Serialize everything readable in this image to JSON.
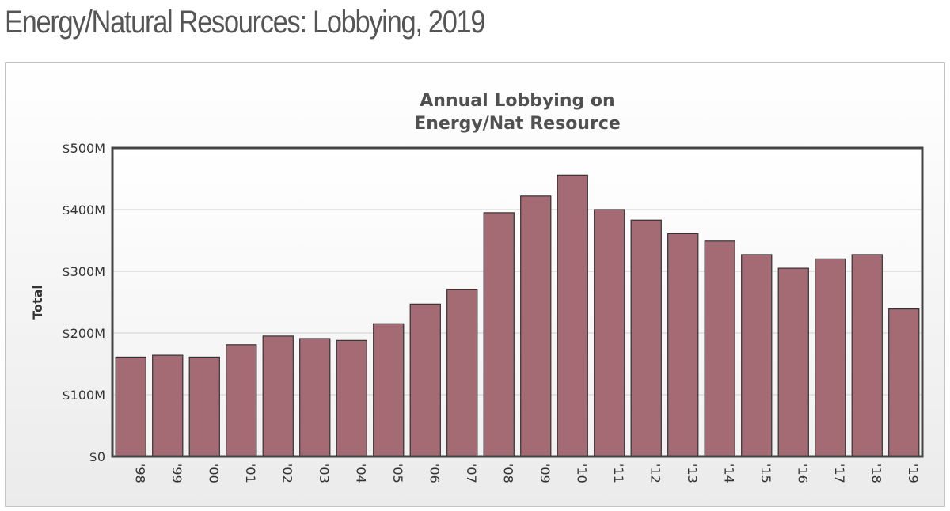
{
  "page": {
    "title": "Energy/Natural Resources: Lobbying, 2019"
  },
  "chart_data": {
    "type": "bar",
    "title_lines": [
      "Annual Lobbying on",
      "Energy/Nat Resource"
    ],
    "xlabel": "",
    "ylabel": "Total",
    "categories": [
      "'98",
      "'99",
      "'00",
      "'01",
      "'02",
      "'03",
      "'04",
      "'05",
      "'06",
      "'07",
      "'08",
      "'09",
      "'10",
      "'11",
      "'12",
      "'13",
      "'14",
      "'15",
      "'16",
      "'17",
      "'18",
      "'19"
    ],
    "values": [
      161,
      164,
      161,
      181,
      195,
      191,
      188,
      215,
      247,
      271,
      395,
      422,
      456,
      400,
      383,
      361,
      349,
      327,
      305,
      320,
      327,
      239
    ],
    "units": "millions USD",
    "ylim": [
      0,
      500
    ],
    "yticks": [
      {
        "value": 0,
        "label": "$0"
      },
      {
        "value": 100,
        "label": "$100M"
      },
      {
        "value": 200,
        "label": "$200M"
      },
      {
        "value": 300,
        "label": "$300M"
      },
      {
        "value": 400,
        "label": "$400M"
      },
      {
        "value": 500,
        "label": "$500M"
      }
    ],
    "grid": true,
    "bar_color": "#a46b75",
    "bar_edge_color": "#333333",
    "legend": "none"
  }
}
